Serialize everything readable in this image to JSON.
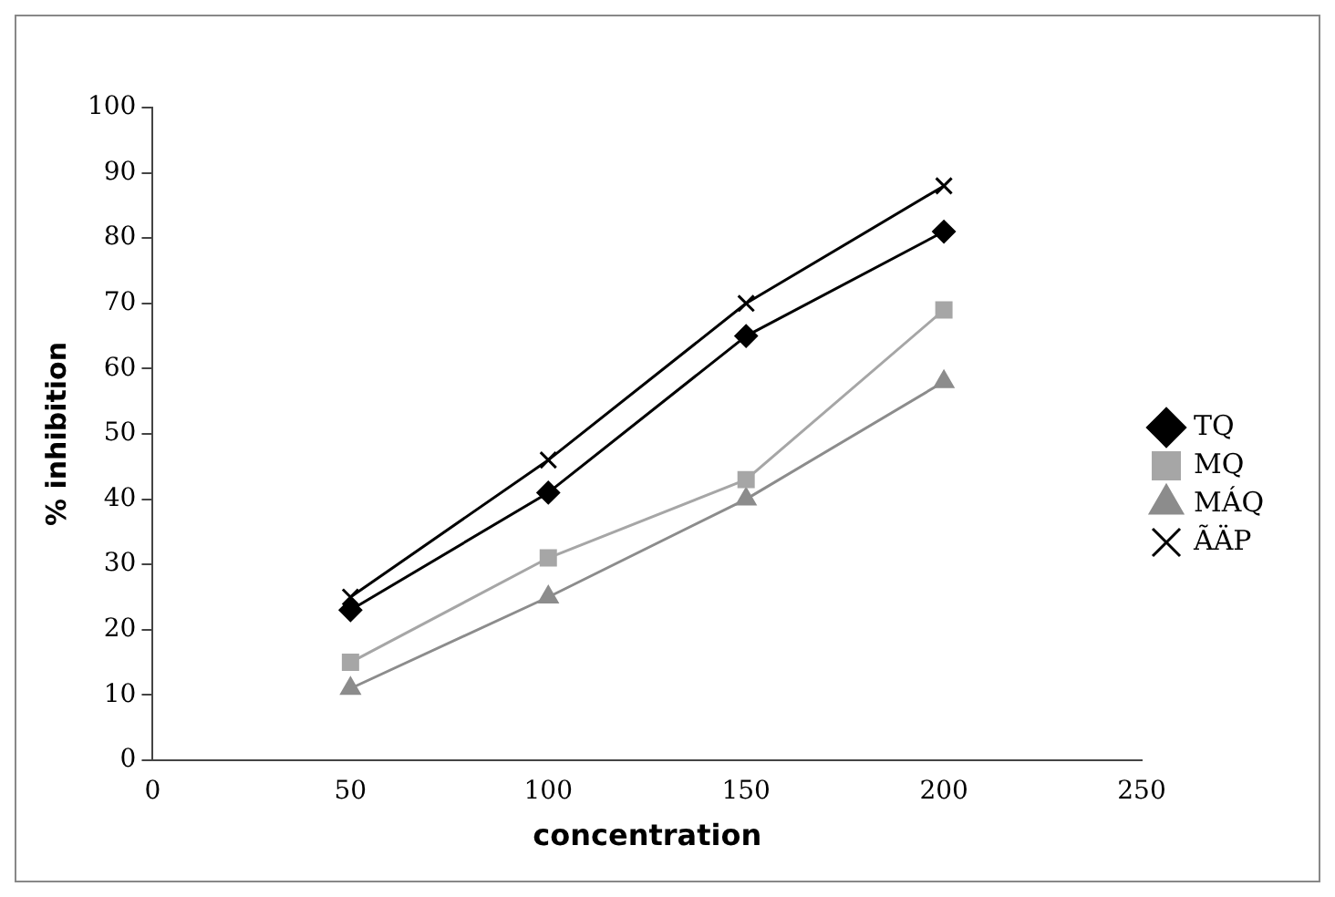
{
  "chart_data": {
    "type": "line",
    "xlabel": "concentration",
    "ylabel": "% inhibition",
    "xlim": [
      0,
      250
    ],
    "xticks": [
      0,
      50,
      100,
      150,
      200,
      250
    ],
    "ylim": [
      0,
      100
    ],
    "yticks": [
      0,
      10,
      20,
      30,
      40,
      50,
      60,
      70,
      80,
      90,
      100
    ],
    "grid": false,
    "legend": "right",
    "line_style": "solid",
    "series": [
      {
        "name": "TQ",
        "color": "#000000",
        "marker": "diamond",
        "x": [
          50,
          100,
          150,
          200
        ],
        "values": [
          23,
          41,
          65,
          81
        ]
      },
      {
        "name": "MQ",
        "color": "#a6a6a6",
        "marker": "square",
        "x": [
          50,
          100,
          150,
          200
        ],
        "values": [
          15,
          31,
          43,
          69
        ]
      },
      {
        "name": "MÁQ",
        "color": "#8c8c8c",
        "marker": "triangle",
        "x": [
          50,
          100,
          150,
          200
        ],
        "values": [
          11,
          25,
          40,
          58
        ]
      },
      {
        "name": "ÃÄP",
        "color": "#000000",
        "marker": "cross",
        "x": [
          50,
          100,
          150,
          200
        ],
        "values": [
          25,
          46,
          70,
          88
        ]
      }
    ]
  }
}
